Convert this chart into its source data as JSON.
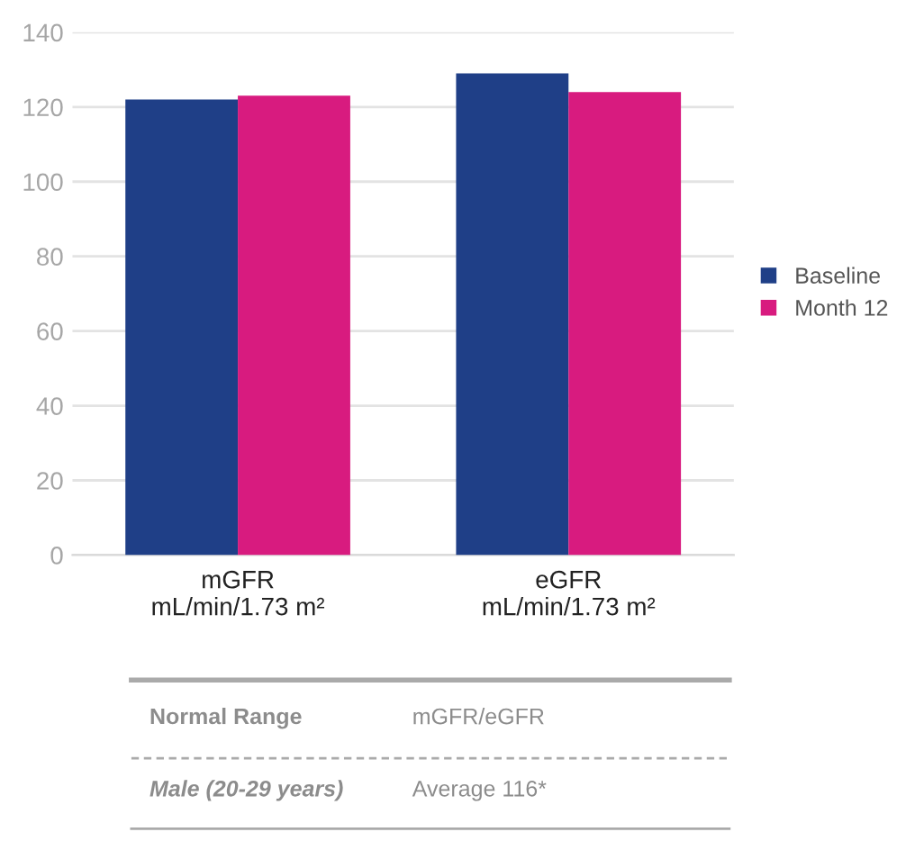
{
  "chart_data": {
    "type": "bar",
    "categories": [
      "mGFR\nmL/min/1.73 m²",
      "eGFR\nmL/min/1.73 m²"
    ],
    "series": [
      {
        "name": "Baseline",
        "color": "#1f3f87",
        "values": [
          122,
          129
        ]
      },
      {
        "name": "Month 12",
        "color": "#d81b7f",
        "values": [
          123,
          124
        ]
      }
    ],
    "ylim": [
      0,
      140
    ],
    "yticks": [
      0,
      20,
      40,
      60,
      80,
      100,
      120,
      140
    ],
    "grid": "y",
    "legend": "right",
    "annotations": [
      "Normal Range",
      "mGFR/eGFR",
      "Male (20-29 years)",
      "Average 116*"
    ]
  }
}
